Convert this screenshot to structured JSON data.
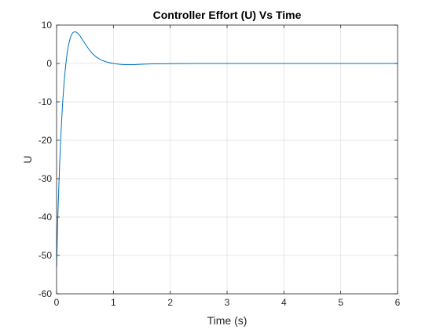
{
  "chart_data": {
    "type": "line",
    "title": "Controller Effort (U) Vs Time",
    "xlabel": "Time (s)",
    "ylabel": "U",
    "xlim": [
      0,
      6
    ],
    "ylim": [
      -60,
      10
    ],
    "grid": true,
    "x_ticks": [
      0,
      1,
      2,
      3,
      4,
      5,
      6
    ],
    "x_tick_labels": [
      "0",
      "1",
      "2",
      "3",
      "4",
      "5",
      "6"
    ],
    "y_ticks": [
      -60,
      -50,
      -40,
      -30,
      -20,
      -10,
      0,
      10
    ],
    "y_tick_labels": [
      "-60",
      "-50",
      "-40",
      "-30",
      "-20",
      "-10",
      "0",
      "10"
    ],
    "series": [
      {
        "color": "#0072bd",
        "x": [
          0,
          0.01,
          0.02,
          0.04,
          0.06,
          0.08,
          0.1,
          0.12,
          0.15,
          0.18,
          0.21,
          0.25,
          0.28,
          0.31,
          0.34,
          0.37,
          0.4,
          0.43,
          0.46,
          0.5,
          0.55,
          0.6,
          0.65,
          0.7,
          0.75,
          0.8,
          0.9,
          1.0,
          1.1,
          1.2,
          1.35,
          1.5,
          1.7,
          2.0,
          2.5,
          3.0,
          4.0,
          5.0,
          6.0
        ],
        "y": [
          -53.0,
          -47.0,
          -41.0,
          -32.0,
          -24.0,
          -17.5,
          -12.0,
          -7.5,
          -2.0,
          2.0,
          4.8,
          7.0,
          7.9,
          8.2,
          8.2,
          7.9,
          7.4,
          6.8,
          6.1,
          5.2,
          4.1,
          3.1,
          2.3,
          1.7,
          1.2,
          0.8,
          0.3,
          0.0,
          -0.2,
          -0.3,
          -0.3,
          -0.2,
          -0.1,
          -0.05,
          0.0,
          0.0,
          0.0,
          0.0,
          0.0
        ]
      }
    ]
  }
}
